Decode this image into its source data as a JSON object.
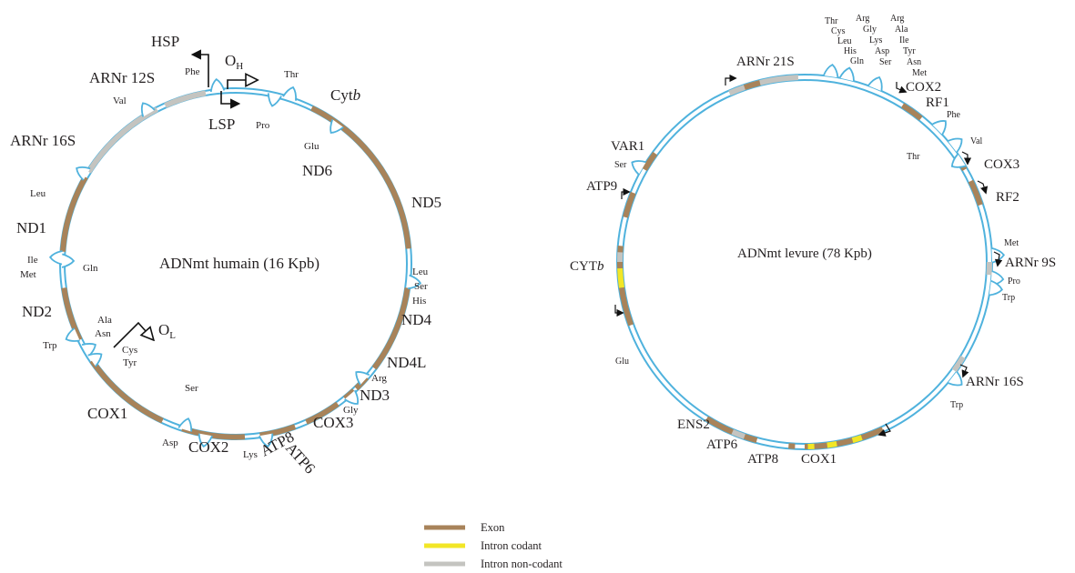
{
  "colors": {
    "exon": "#a8835a",
    "coding_intron": "#f2e626",
    "noncoding_intron": "#c4c4c0",
    "ring": "#4fb2dd",
    "ink": "#231f20"
  },
  "human": {
    "center_title": "ADNmt humain (16 Kpb)",
    "promoters": {
      "hsp": "HSP",
      "lsp": "LSP",
      "oh": "O",
      "oh_sub": "H",
      "ol": "O",
      "ol_sub": "L"
    },
    "genes": {
      "cytb": "Cyt",
      "cytb_italic": "b",
      "nd6": "ND6",
      "nd5": "ND5",
      "nd4": "ND4",
      "nd4l": "ND4L",
      "nd3": "ND3",
      "cox3": "COX3",
      "atp6": "ATP6",
      "atp8": "ATP8",
      "cox2": "COX2",
      "cox1": "COX1",
      "nd2": "ND2",
      "nd1": "ND1",
      "rrna16s": "ARNr 16S",
      "rrna12s": "ARNr 12S"
    },
    "trnas": {
      "phe": "Phe",
      "thr": "Thr",
      "pro": "Pro",
      "glu": "Glu",
      "val": "Val",
      "leu1": "Leu",
      "ile": "Ile",
      "met": "Met",
      "gln": "Gln",
      "ala": "Ala",
      "asn": "Asn",
      "cys": "Cys",
      "tyr": "Tyr",
      "trp": "Trp",
      "ser1": "Ser",
      "asp": "Asp",
      "lys": "Lys",
      "gly": "Gly",
      "arg": "Arg",
      "leu2": "Leu",
      "ser2": "Ser",
      "his": "His"
    }
  },
  "yeast": {
    "center_title": "ADNmt levure (78 Kpb)",
    "genes": {
      "rrna21s": "ARNr 21S",
      "cox2": "COX2",
      "rf1": "RF1",
      "cox3": "COX3",
      "rf2": "RF2",
      "rrna9s": "ARNr 9S",
      "rrna16s": "ARNr 16S",
      "cox1": "COX1",
      "atp8": "ATP8",
      "atp6": "ATP6",
      "ens2": "ENS2",
      "cytb": "CYT",
      "cytb_italic": "b",
      "atp9": "ATP9",
      "var1": "VAR1"
    },
    "trnas": {
      "cluster_col1": [
        "Thr",
        "Cys",
        "Leu",
        "His",
        "Gln"
      ],
      "cluster_col2": [
        "Arg",
        "Gly",
        "Lys",
        "Asp",
        "Ser"
      ],
      "cluster_col3": [
        "Arg",
        "Ala",
        "Ile",
        "Tyr",
        "Asn",
        "Met"
      ],
      "phe": "Phe",
      "val": "Val",
      "thr": "Thr",
      "met": "Met",
      "pro": "Pro",
      "trp1": "Trp",
      "trp2": "Trp",
      "glu": "Glu",
      "ser": "Ser"
    }
  },
  "legend": {
    "items": [
      {
        "label": "Exon",
        "color": "#a8835a"
      },
      {
        "label": "Intron codant",
        "color": "#f2e626"
      },
      {
        "label": "Intron non-codant",
        "color": "#c4c4c0"
      }
    ]
  }
}
